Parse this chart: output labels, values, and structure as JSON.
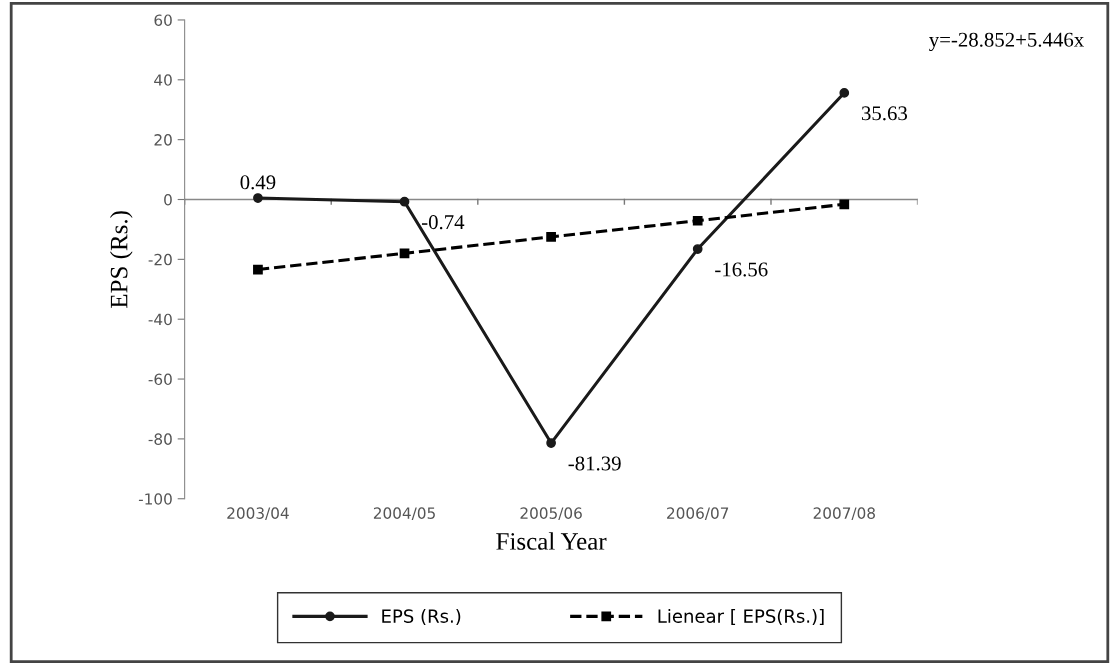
{
  "chart_data": {
    "type": "line",
    "xlabel": "Fiscal Year",
    "ylabel": "EPS (Rs.)",
    "categories": [
      "2003/04",
      "2004/05",
      "2005/06",
      "2006/07",
      "2007/08"
    ],
    "series": [
      {
        "name": "EPS (Rs.)",
        "color": "#1a1a1a",
        "values": [
          0.49,
          -0.74,
          -81.39,
          -16.56,
          35.63
        ],
        "value_labels": [
          "0.49",
          "-0.74",
          "-81.39",
          "-16.56",
          "35.63"
        ],
        "marker": "circle",
        "line_style": "solid"
      },
      {
        "name": "Lienear [ EPS(Rs.)]",
        "color": "#000000",
        "values": [
          -23.4,
          -18.0,
          -12.5,
          -7.1,
          -1.6
        ],
        "marker": "square",
        "line_style": "dashed"
      }
    ],
    "ylim": [
      -100,
      60
    ],
    "yticks": [
      -100,
      -80,
      -60,
      -40,
      -20,
      0,
      20,
      40,
      60
    ],
    "annotations": [
      "y=-28.852+5.446x"
    ],
    "legend": "bottom"
  }
}
